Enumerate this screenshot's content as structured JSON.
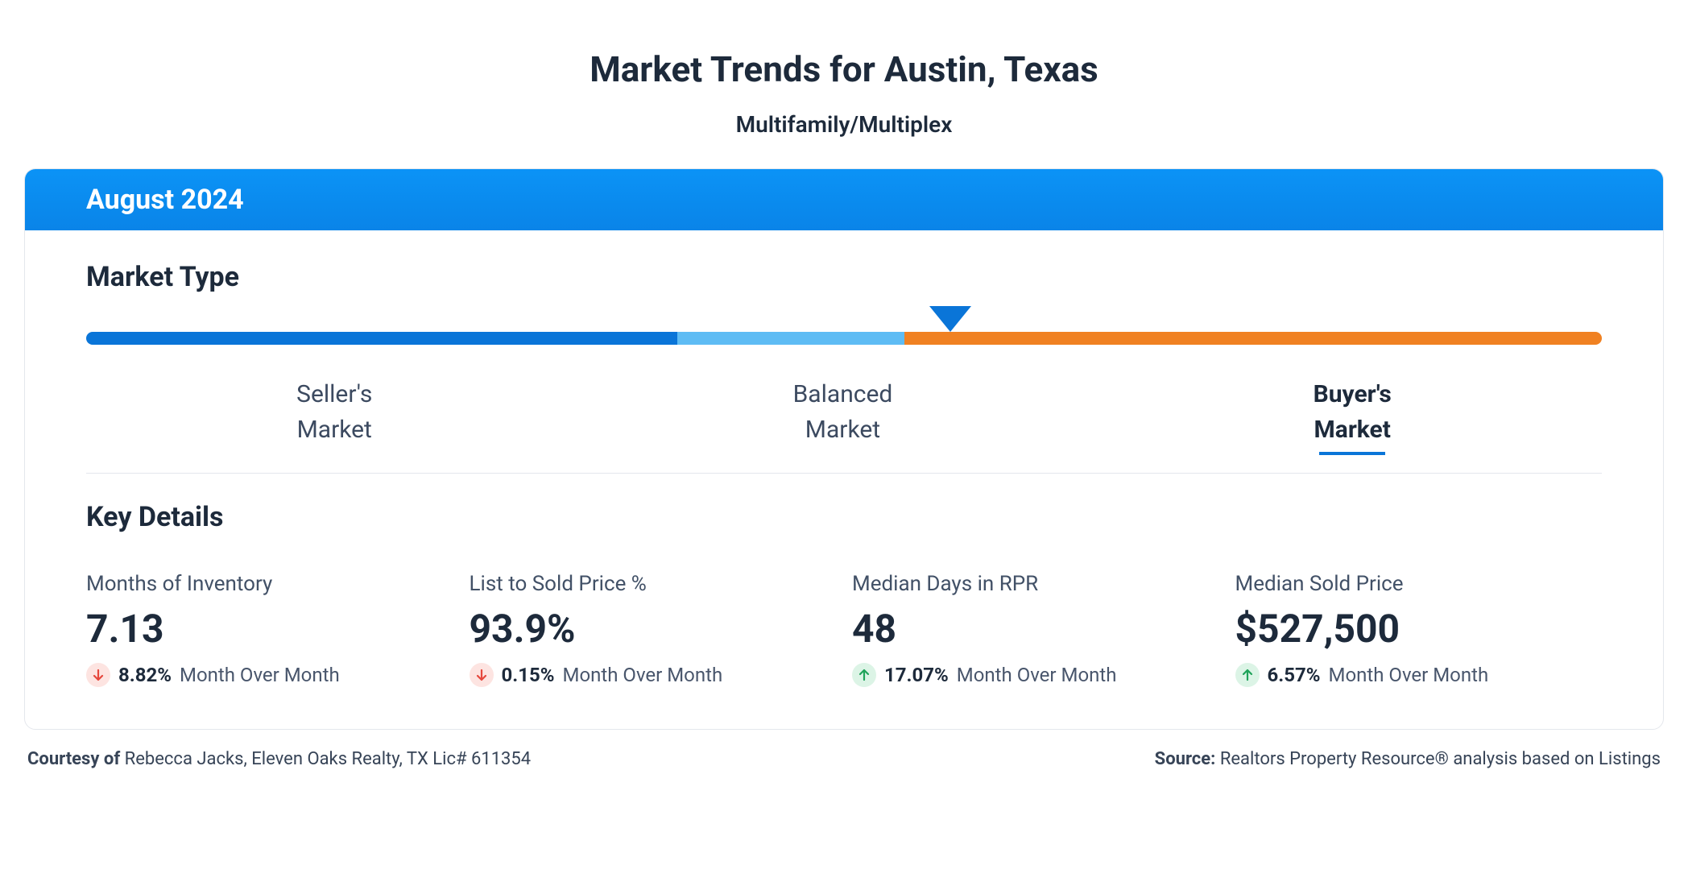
{
  "title": "Market Trends for Austin, Texas",
  "subtitle": "Multifamily/Multiplex",
  "period": "August 2024",
  "market_type": {
    "section_label": "Market Type",
    "segments": [
      {
        "label_line1": "Seller's",
        "label_line2": "Market",
        "color": "#0a75d8",
        "width_pct": 39
      },
      {
        "label_line1": "Balanced",
        "label_line2": "Market",
        "color": "#5ebcf4",
        "width_pct": 15
      },
      {
        "label_line1": "Buyer's",
        "label_line2": "Market",
        "color": "#f08122",
        "width_pct": 46
      }
    ],
    "active_index": 2,
    "marker_pct": 57,
    "marker_border_color": "#0a75d8",
    "marker_fill_color": "#ffffff"
  },
  "key_details": {
    "section_label": "Key Details",
    "items": [
      {
        "label": "Months of Inventory",
        "value": "7.13",
        "change_pct": "8.82%",
        "direction": "down",
        "period_label": "Month Over Month"
      },
      {
        "label": "List to Sold Price %",
        "value": "93.9%",
        "change_pct": "0.15%",
        "direction": "down",
        "period_label": "Month Over Month"
      },
      {
        "label": "Median Days in RPR",
        "value": "48",
        "change_pct": "17.07%",
        "direction": "up",
        "period_label": "Month Over Month"
      },
      {
        "label": "Median Sold Price",
        "value": "$527,500",
        "change_pct": "6.57%",
        "direction": "up",
        "period_label": "Month Over Month"
      }
    ],
    "badge_colors": {
      "down_bg": "#fde4e1",
      "down_arrow": "#e6483d",
      "up_bg": "#dcf4e6",
      "up_arrow": "#1fa35a"
    }
  },
  "footer": {
    "courtesy_label": "Courtesy of",
    "courtesy_value": "Rebecca Jacks, Eleven Oaks Realty, TX Lic# 611354",
    "source_label": "Source:",
    "source_value": "Realtors Property Resource® analysis based on Listings"
  },
  "colors": {
    "text_primary": "#1d2a3b",
    "text_secondary": "#425167",
    "border": "#e4e7ec",
    "header_bg": "#0b93f6"
  }
}
